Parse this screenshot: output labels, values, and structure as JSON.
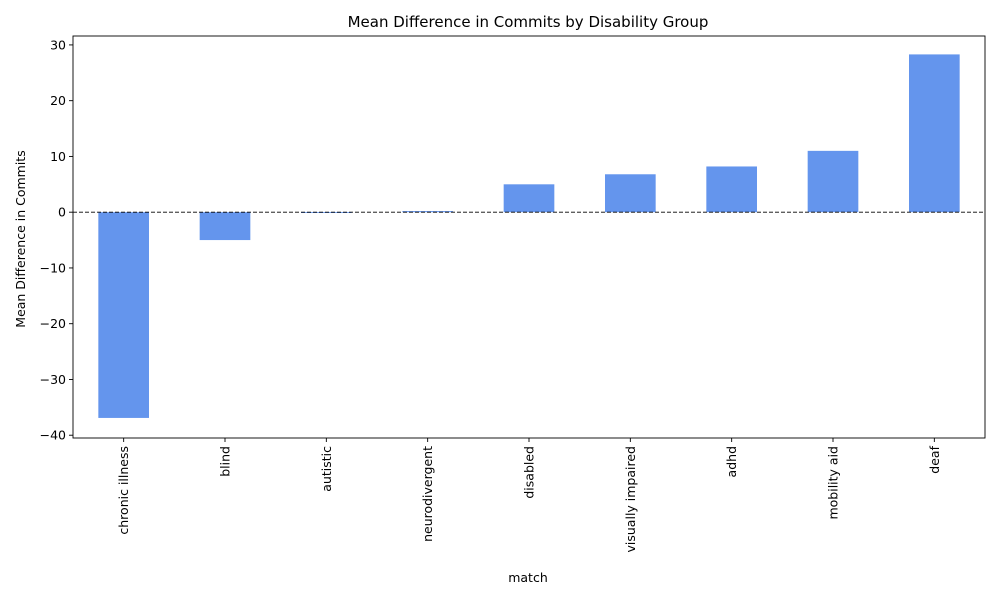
{
  "chart_data": {
    "type": "bar",
    "title": "Mean Difference in Commits by Disability Group",
    "xlabel": "match",
    "ylabel": "Mean Difference in Commits",
    "categories": [
      "chronic illness",
      "blind",
      "autistic",
      "neurodivergent",
      "disabled",
      "visually impaired",
      "adhd",
      "mobility aid",
      "deaf"
    ],
    "values": [
      -36.9,
      -5.0,
      -0.1,
      0.2,
      5.0,
      6.8,
      8.2,
      11.0,
      28.3
    ],
    "ylim": [
      -40.5,
      31.6
    ],
    "yticks": [
      -40,
      -30,
      -20,
      -10,
      0,
      10,
      20,
      30
    ],
    "ytick_labels": [
      "−40",
      "−30",
      "−20",
      "−10",
      "0",
      "10",
      "20",
      "30"
    ],
    "bar_color": "#6495ed",
    "reference_line": {
      "y": 0,
      "style": "dashed",
      "color": "#000000"
    },
    "grid": false,
    "legend": "none"
  }
}
